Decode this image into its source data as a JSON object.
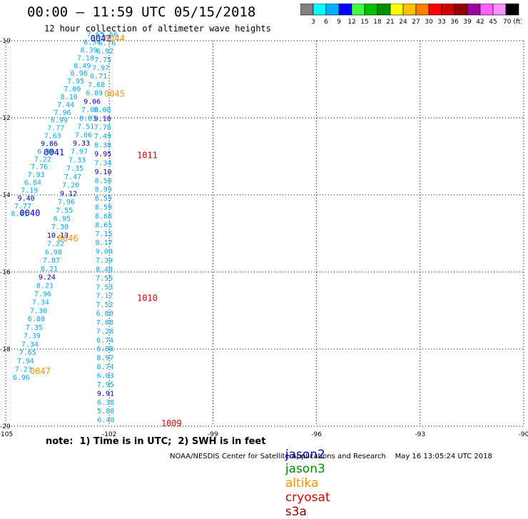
{
  "title": "00:00 – 11:59 UTC 05/15/2018",
  "subtitle": "12 hour collection of altimeter wave heights",
  "colorbar": {
    "colors": [
      "#808080",
      "#00ffff",
      "#00b0ff",
      "#0000ff",
      "#40ff40",
      "#00c000",
      "#009000",
      "#ffff00",
      "#ffc000",
      "#ff8000",
      "#ff0000",
      "#d00000",
      "#900000",
      "#a000a0",
      "#ff60ff",
      "#ff90ff",
      "#000000"
    ],
    "labels": [
      "3",
      "6",
      "9",
      "12",
      "15",
      "18",
      "21",
      "24",
      "27",
      "30",
      "33",
      "36",
      "39",
      "42",
      "45",
      "70 (ft)"
    ]
  },
  "note": "note:  1) Time is in UTC;  2) SWH is in feet",
  "legend": [
    {
      "name": "jason2",
      "color": "#0000cc"
    },
    {
      "name": "jason3",
      "color": "#009000"
    },
    {
      "name": "altika",
      "color": "#ff9000"
    },
    {
      "name": "cryosat",
      "color": "#e00000"
    },
    {
      "name": "s3a",
      "color": "#900000"
    }
  ],
  "credit": "NOAA/NESDIS Center for Satellite Applications and Research    May 16 13:05:24 UTC 2018",
  "chart_data": {
    "type": "scatter",
    "xlim": [
      -105,
      -90
    ],
    "ylim": [
      -20,
      -10
    ],
    "x_ticks": [
      "-105",
      "-102",
      "-99",
      "-96",
      "-93",
      "-90"
    ],
    "y_ticks": [
      "-10",
      "-12",
      "-14",
      "-16",
      "-18",
      "-20"
    ],
    "grid": true,
    "colors": {
      "light": "#00aaff",
      "mid": "#0000cc",
      "time_blue": "#0000cc",
      "time_orange": "#ff9000",
      "time_red": "#e00000"
    },
    "track_a": {
      "values": [
        "7.65",
        "6.34",
        "8.39",
        "7.18",
        "8.49",
        "6.96",
        "7.95",
        "7.09",
        "8.10",
        "7.44",
        "7.96",
        "6.99",
        "7.77",
        "7.63",
        "9.86",
        "6.90",
        "7.22",
        "7.76",
        "7.93",
        "6.84",
        "7.19",
        "9.40",
        "7.77",
        "8.41"
      ],
      "strong": [
        14,
        21
      ]
    },
    "track_b": {
      "values": [
        "5.66",
        "6.76",
        "6.92",
        "7.75",
        "7.97",
        "6.71",
        "7.68",
        "6.89",
        "9.06",
        "7.00",
        "8.83",
        "7.51",
        "7.06",
        "9.33",
        "7.97",
        "7.33",
        "7.35",
        "7.47",
        "7.20",
        "9.12",
        "7.96",
        "7.55",
        "6.95",
        "7.30",
        "10.13",
        "7.22",
        "6.98",
        "7.87",
        "8.21",
        "9.24",
        "8.21",
        "7.96",
        "7.34",
        "7.30",
        "6.80",
        "7.35",
        "7.39",
        "7.34",
        "7.65",
        "7.94",
        "7.23",
        "6.96"
      ],
      "strong": [
        8,
        13,
        19,
        24,
        29
      ]
    },
    "track_c": {
      "values": [
        "8.08",
        "9.10",
        "7.78",
        "7.49",
        "8.38",
        "9.95",
        "7.34",
        "9.10",
        "8.50",
        "8.99",
        "8.59",
        "8.59",
        "8.68",
        "8.65",
        "7.15",
        "8.17",
        "9.00",
        "7.39",
        "8.48",
        "7.55",
        "7.53",
        "7.17",
        "7.52",
        "6.80",
        "7.08",
        "7.28",
        "6.74",
        "6.88",
        "8.97",
        "8.74",
        "6.03",
        "7.95",
        "9.91",
        "6.38",
        "5.80",
        "6.40"
      ],
      "strong": [
        1,
        5,
        7,
        32
      ]
    },
    "times": [
      {
        "label": "0042",
        "color": "time_blue",
        "lon": -102.25,
        "lat": -10.02
      },
      {
        "label": "0044",
        "color": "time_orange",
        "lon": -101.85,
        "lat": -10.02
      },
      {
        "label": "0045",
        "color": "time_orange",
        "lon": -101.85,
        "lat": -11.45
      },
      {
        "label": "1011",
        "color": "time_red",
        "lon": -100.9,
        "lat": -13.05
      },
      {
        "label": "0041",
        "color": "time_blue",
        "lon": -103.6,
        "lat": -12.97
      },
      {
        "label": "0040",
        "color": "time_blue",
        "lon": -104.3,
        "lat": -14.55
      },
      {
        "label": "0046",
        "color": "time_orange",
        "lon": -103.2,
        "lat": -15.2
      },
      {
        "label": "1010",
        "color": "time_red",
        "lon": -100.9,
        "lat": -16.75
      },
      {
        "label": "0047",
        "color": "time_orange",
        "lon": -104.0,
        "lat": -18.65
      },
      {
        "label": "1009",
        "color": "time_red",
        "lon": -100.2,
        "lat": -20.0
      }
    ]
  }
}
